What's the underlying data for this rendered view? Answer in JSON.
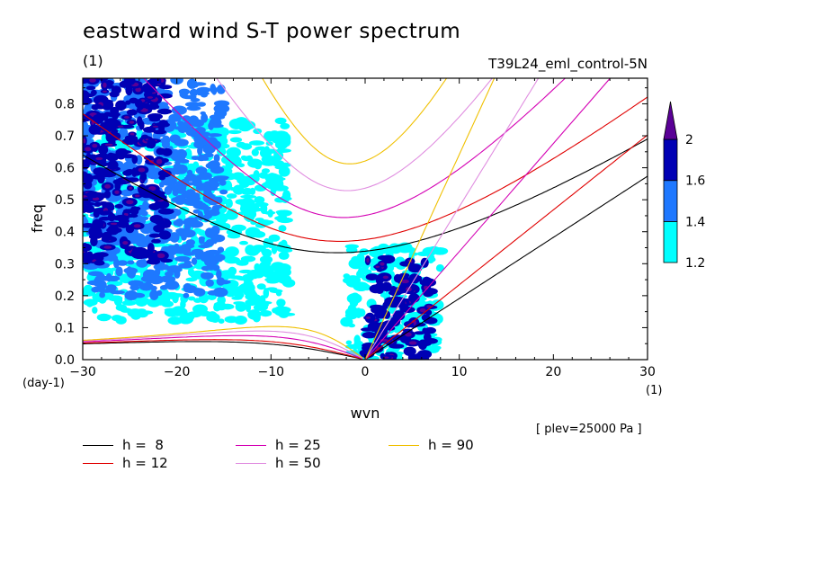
{
  "header": {
    "title": "eastward wind S-T power spectrum",
    "unit_top_left": "(1)",
    "run_label": "T39L24_eml_control-5N"
  },
  "note": "[ plev=25000 Pa ]",
  "chart_data": {
    "type": "heatmap",
    "title": "eastward wind S-T power spectrum",
    "xlabel": "wvn",
    "ylabel": "freq",
    "x_unit": "(1)",
    "y_unit": "(day-1)",
    "xlim": [
      -30,
      30
    ],
    "ylim": [
      0,
      0.88
    ],
    "x_ticks": [
      -30,
      -20,
      -10,
      0,
      10,
      20,
      30
    ],
    "x_tick_labels": [
      "−30",
      "−20",
      "−10",
      "0",
      "10",
      "20",
      "30"
    ],
    "y_ticks": [
      0,
      0.1,
      0.2,
      0.3,
      0.4,
      0.5,
      0.6,
      0.7,
      0.8
    ],
    "y_tick_labels": [
      "0.0",
      "0.1",
      "0.2",
      "0.3",
      "0.4",
      "0.5",
      "0.6",
      "0.7",
      "0.8"
    ],
    "colorbar": {
      "levels": [
        1.2,
        1.4,
        1.6,
        2
      ],
      "labels": [
        "1.2",
        "1.4",
        "1.6",
        "2"
      ],
      "colors": [
        "#00ffff",
        "#1e78ff",
        "#0000b4",
        "#5a0096"
      ],
      "extend": "max"
    },
    "power_regions": [
      {
        "kmin": -30,
        "kmax": -21,
        "fmin": 0.3,
        "fmax": 0.88,
        "level": 1.6
      },
      {
        "kmin": -30,
        "kmax": -15,
        "fmin": 0.2,
        "fmax": 0.88,
        "level": 1.4
      },
      {
        "kmin": -30,
        "kmax": -8,
        "fmin": 0.12,
        "fmax": 0.75,
        "level": 1.2
      },
      {
        "kmin": 0,
        "kmax": 7,
        "fmin": 0.0,
        "fmax": 0.32,
        "level": 1.6
      },
      {
        "kmin": -2,
        "kmax": 8,
        "fmin": 0.0,
        "fmax": 0.36,
        "level": 1.2
      }
    ],
    "dispersion_curves": [
      {
        "name": "h =  8",
        "h": 8,
        "color": "#000000"
      },
      {
        "name": "h = 12",
        "h": 12,
        "color": "#e00000"
      },
      {
        "name": "h = 25",
        "h": 25,
        "color": "#d400b4"
      },
      {
        "name": "h = 50",
        "h": 50,
        "color": "#e08ee0"
      },
      {
        "name": "h = 90",
        "h": 90,
        "color": "#f0c000"
      }
    ],
    "legend_placement": "bottom",
    "grid": false
  }
}
